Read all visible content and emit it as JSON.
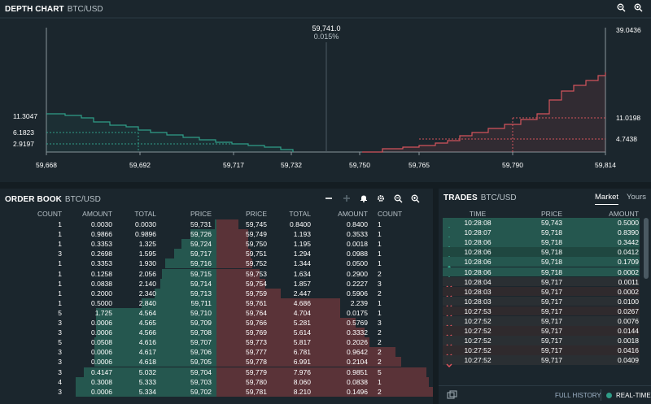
{
  "depth": {
    "title": "DEPTH CHART",
    "pair": "BTC/USD",
    "mid_price": "59,741.0",
    "mid_pct": "0.015%",
    "left_labels": [
      "11.3047",
      "6.1823",
      "2.9197"
    ],
    "right_labels": [
      "39.0436",
      "11.0198",
      "4.7438"
    ],
    "x_ticks": [
      "59,668",
      "59,692",
      "59,717",
      "59,732",
      "59,750",
      "59,765",
      "59,790",
      "59,814"
    ],
    "bid_color": "#2f9e88",
    "ask_color": "#d3545c"
  },
  "book": {
    "title": "ORDER BOOK",
    "pair": "BTC/USD",
    "headers": [
      "COUNT",
      "AMOUNT",
      "TOTAL",
      "PRICE",
      "PRICE",
      "TOTAL",
      "AMOUNT",
      "COUNT"
    ],
    "bids": [
      [
        "1",
        "0.0030",
        "0.0030",
        "59,731"
      ],
      [
        "1",
        "0.9866",
        "0.9896",
        "59,726"
      ],
      [
        "1",
        "0.3353",
        "1.325",
        "59,724"
      ],
      [
        "3",
        "0.2698",
        "1.595",
        "59,717"
      ],
      [
        "1",
        "0.3353",
        "1.930",
        "59,716"
      ],
      [
        "1",
        "0.1258",
        "2.056",
        "59,715"
      ],
      [
        "1",
        "0.0838",
        "2.140",
        "59,714"
      ],
      [
        "1",
        "0.2000",
        "2.340",
        "59,713"
      ],
      [
        "1",
        "0.5000",
        "2.840",
        "59,711"
      ],
      [
        "5",
        "1.725",
        "4.564",
        "59,710"
      ],
      [
        "3",
        "0.0006",
        "4.565",
        "59,709"
      ],
      [
        "3",
        "0.0006",
        "4.566",
        "59,708"
      ],
      [
        "5",
        "0.0508",
        "4.616",
        "59,707"
      ],
      [
        "3",
        "0.0006",
        "4.617",
        "59,706"
      ],
      [
        "3",
        "0.0006",
        "4.618",
        "59,705"
      ],
      [
        "3",
        "0.4147",
        "5.032",
        "59,704"
      ],
      [
        "4",
        "0.3008",
        "5.333",
        "59,703"
      ],
      [
        "3",
        "0.0006",
        "5.334",
        "59,702"
      ]
    ],
    "asks": [
      [
        "59,745",
        "0.8400",
        "0.8400",
        "1"
      ],
      [
        "59,749",
        "1.193",
        "0.3533",
        "1"
      ],
      [
        "59,750",
        "1.195",
        "0.0018",
        "1"
      ],
      [
        "59,751",
        "1.294",
        "0.0988",
        "1"
      ],
      [
        "59,752",
        "1.344",
        "0.0500",
        "1"
      ],
      [
        "59,753",
        "1.634",
        "0.2900",
        "2"
      ],
      [
        "59,754",
        "1.857",
        "0.2227",
        "3"
      ],
      [
        "59,759",
        "2.447",
        "0.5906",
        "2"
      ],
      [
        "59,761",
        "4.686",
        "2.239",
        "1"
      ],
      [
        "59,764",
        "4.704",
        "0.0175",
        "1"
      ],
      [
        "59,766",
        "5.281",
        "0.5769",
        "3"
      ],
      [
        "59,769",
        "5.614",
        "0.3332",
        "2"
      ],
      [
        "59,773",
        "5.817",
        "0.2026",
        "2"
      ],
      [
        "59,777",
        "6.781",
        "0.9642",
        "2"
      ],
      [
        "59,778",
        "6.991",
        "0.2104",
        "2"
      ],
      [
        "59,779",
        "7.976",
        "0.9851",
        "5"
      ],
      [
        "59,780",
        "8.060",
        "0.0838",
        "1"
      ],
      [
        "59,781",
        "8.210",
        "0.1496",
        "2"
      ]
    ]
  },
  "trades": {
    "title": "TRADES",
    "pair": "BTC/USD",
    "tab_market": "Market",
    "tab_yours": "Yours",
    "headers": [
      "TIME",
      "PRICE",
      "AMOUNT"
    ],
    "rows": [
      [
        "up",
        "10:28:08",
        "59,743",
        "0.5000"
      ],
      [
        "up",
        "10:28:07",
        "59,718",
        "0.8390"
      ],
      [
        "up",
        "10:28:06",
        "59,718",
        "0.3442"
      ],
      [
        "up",
        "10:28:06",
        "59,718",
        "0.0412"
      ],
      [
        "up",
        "10:28:06",
        "59,718",
        "0.1709"
      ],
      [
        "up",
        "10:28:06",
        "59,718",
        "0.0002"
      ],
      [
        "down",
        "10:28:04",
        "59,717",
        "0.0011"
      ],
      [
        "down",
        "10:28:03",
        "59,717",
        "0.0002"
      ],
      [
        "down",
        "10:28:03",
        "59,717",
        "0.0100"
      ],
      [
        "down",
        "10:27:53",
        "59,717",
        "0.0267"
      ],
      [
        "down",
        "10:27:52",
        "59,717",
        "0.0076"
      ],
      [
        "down",
        "10:27:52",
        "59,717",
        "0.0144"
      ],
      [
        "down",
        "10:27:52",
        "59,717",
        "0.0018"
      ],
      [
        "down",
        "10:27:52",
        "59,717",
        "0.0416"
      ],
      [
        "down",
        "10:27:52",
        "59,717",
        "0.0409"
      ]
    ],
    "full_history": "FULL HISTORY",
    "realtime": "REAL-TIME"
  }
}
